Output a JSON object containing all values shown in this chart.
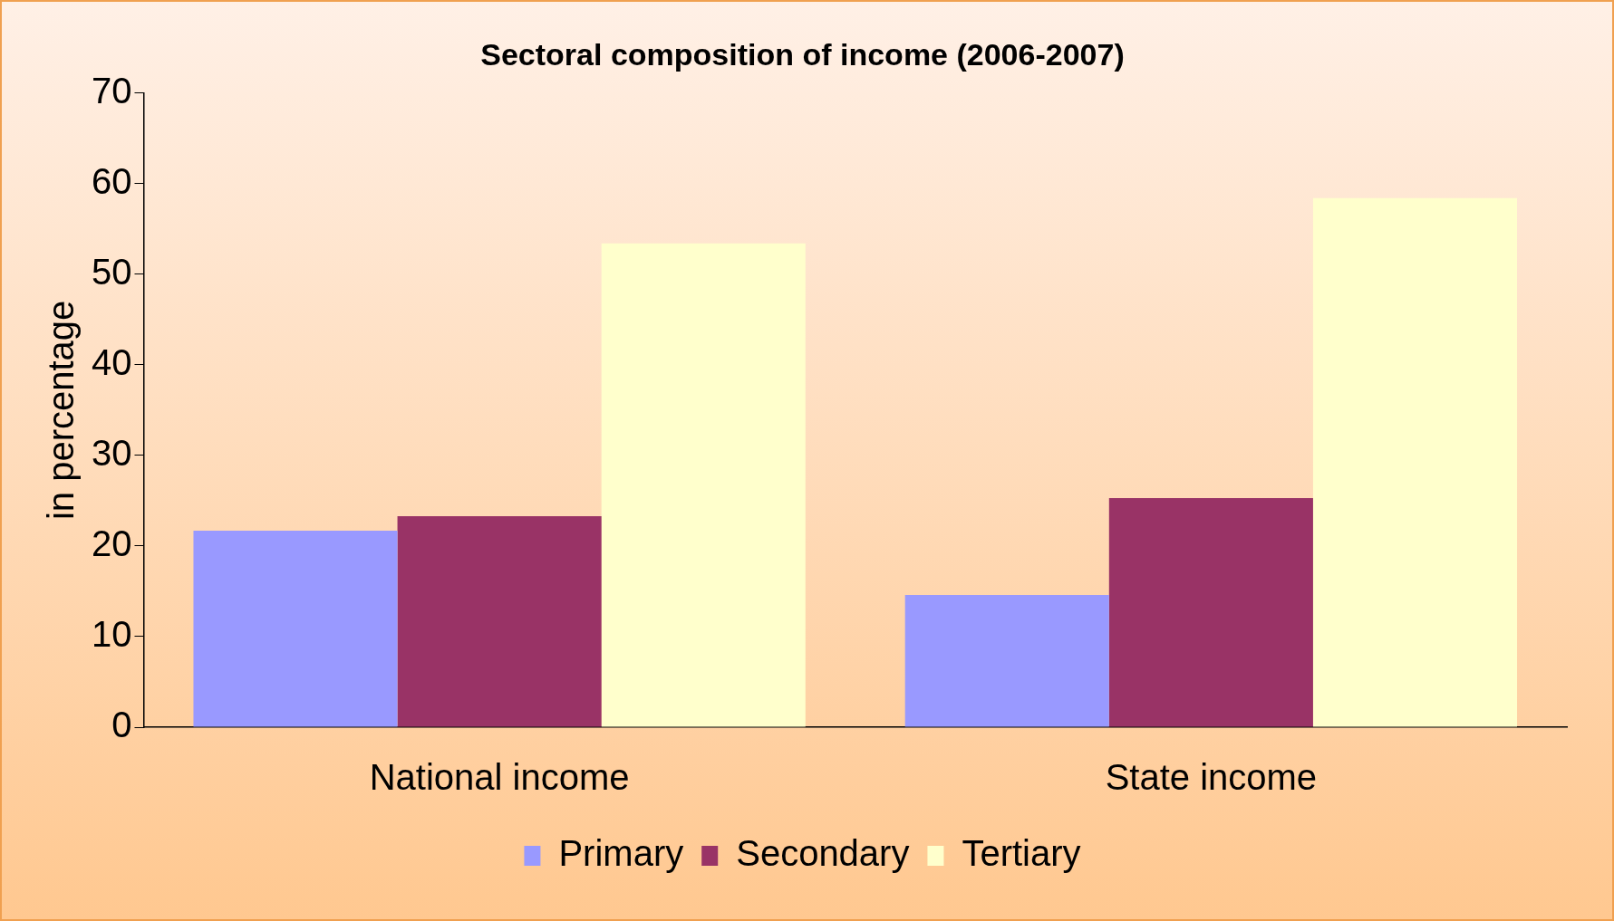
{
  "chart_data": {
    "type": "bar",
    "title": "Sectoral composition of income (2006-2007)",
    "ylabel": "in percentage",
    "categories": [
      "National income",
      "State income"
    ],
    "series": [
      {
        "name": "Primary",
        "color": "#9999ff",
        "values": [
          21.7,
          14.6
        ]
      },
      {
        "name": "Secondary",
        "color": "#993366",
        "values": [
          23.3,
          25.3
        ]
      },
      {
        "name": "Tertiary",
        "color": "#ffffcc",
        "values": [
          53.4,
          58.4
        ]
      }
    ],
    "ylim": [
      0,
      70
    ],
    "yticks": [
      0,
      10,
      20,
      30,
      40,
      50,
      60,
      70
    ],
    "grid": false,
    "legend": "bottom"
  }
}
